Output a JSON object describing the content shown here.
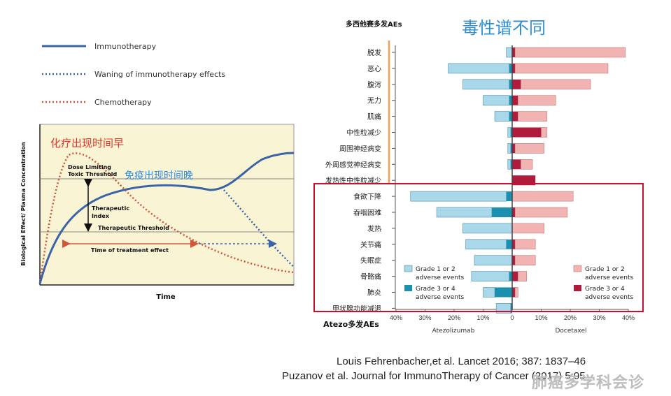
{
  "left_chart": {
    "legend": [
      {
        "label": "Immunotherapy",
        "color": "#3a63a8",
        "style": "solid"
      },
      {
        "label": "Waning of immunotherapy effects",
        "color": "#3a63a8",
        "style": "dotted"
      },
      {
        "label": "Chemotherapy",
        "color": "#d2553a",
        "style": "dotted"
      }
    ],
    "ylabel": "Biological Effect/ Plasma Concentration",
    "xlabel": "Time",
    "annotations": {
      "chemo_early": "化疗出现时间早",
      "immuno_late": "免疫出现时间晚",
      "dose_limiting_1": "Dose Limiting",
      "dose_limiting_2": "Toxic Threshold",
      "therapeutic_index_1": "Therapeutic",
      "therapeutic_index_2": "Index",
      "therapeutic_threshold": "Therapeutic Threshold",
      "time_of_treatment": "Time of treatment effect"
    },
    "colors": {
      "background": "#f8f4d4",
      "immuno": "#3a63a8",
      "chemo": "#d2553a",
      "annotation_red": "#e8352a",
      "annotation_blue": "#2a8ae8"
    }
  },
  "right_chart": {
    "top_label": "多西他赛多发AEs",
    "bottom_label": "Atezo多发AEs",
    "headline": "毒性谱不同",
    "left_arm": "Atezolizumab",
    "right_arm": "Docetaxel",
    "tick_labels": [
      "40%",
      "30%",
      "20%",
      "10%",
      "0",
      "10%",
      "20%",
      "30%",
      "40%"
    ],
    "legend": {
      "atezo_g12_1": "Grade 1 or 2",
      "atezo_g12_2": "adverse events",
      "atezo_g34_1": "Grade 3 or 4",
      "atezo_g34_2": "adverse events",
      "doce_g12_1": "Grade 1 or 2",
      "doce_g12_2": "adverse events",
      "doce_g34_1": "Grade 3 or 4",
      "doce_g34_2": "adverse events"
    },
    "colors": {
      "atezo_g12": "#a8d8ea",
      "atezo_g34": "#1b8fae",
      "doce_g12": "#f2b4b2",
      "doce_g34": "#b01a3c",
      "highlight_box": "#c8102e",
      "headline": "#2e8fd6",
      "top_bar": "#f0a050"
    }
  },
  "chart_data": {
    "type": "bar",
    "orientation": "horizontal-diverging",
    "xlim": [
      -40,
      40
    ],
    "categories": [
      "脱发",
      "恶心",
      "腹泻",
      "无力",
      "肌痛",
      "中性粒减少",
      "周围神经病变",
      "外周感觉神经病变",
      "发热性中性粒减少",
      "食欲下降",
      "吞咽困难",
      "发热",
      "关节痛",
      "失眠症",
      "骨骼痛",
      "肺炎",
      "甲状腺功能减退"
    ],
    "series": [
      {
        "name": "Atezolizumab Grade 1 or 2",
        "values": [
          2,
          21,
          16,
          9,
          5,
          1,
          1,
          1,
          0,
          33,
          19,
          17,
          14,
          13,
          13,
          4,
          5
        ]
      },
      {
        "name": "Atezolizumab Grade 3 or 4",
        "values": [
          0,
          1,
          1,
          1,
          1,
          0.5,
          0.5,
          0.5,
          0,
          2,
          7,
          0,
          2,
          0,
          1,
          6,
          0.5
        ]
      },
      {
        "name": "Docetaxel Grade 1 or 2",
        "values": [
          38,
          32,
          24,
          13,
          10,
          2,
          10,
          4,
          0,
          21,
          18,
          11,
          7,
          7,
          3,
          1,
          0
        ]
      },
      {
        "name": "Docetaxel Grade 3 or 4",
        "values": [
          1,
          1,
          3,
          2,
          2,
          10,
          1,
          3,
          8,
          0,
          1,
          0,
          1,
          1,
          2,
          1,
          0
        ]
      }
    ]
  },
  "references": {
    "line1": "Louis Fehrenbacher,et  al. Lancet 2016; 387: 1837–46",
    "line2": "Puzanov  et al. Journal for ImmunoTherapy  of Cancer (2017) 5:95"
  },
  "watermark": "肺癌多学科会诊"
}
